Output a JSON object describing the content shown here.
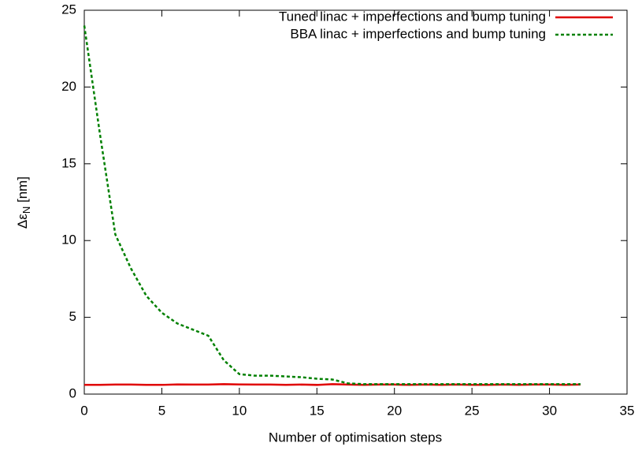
{
  "chart_data": {
    "type": "line",
    "x_label": "Number of optimisation steps",
    "y_label": [
      "Δε",
      "N",
      " [nm]"
    ],
    "x": [
      0,
      1,
      2,
      3,
      4,
      5,
      6,
      7,
      8,
      9,
      10,
      11,
      12,
      13,
      14,
      15,
      16,
      17,
      18,
      19,
      20,
      21,
      22,
      23,
      24,
      25,
      26,
      27,
      28,
      29,
      30,
      31,
      32
    ],
    "series": [
      {
        "name": "Tuned linac + imperfections and bump tuning",
        "color": "#e00000",
        "dash": false,
        "values": [
          0.6,
          0.6,
          0.62,
          0.62,
          0.6,
          0.6,
          0.63,
          0.62,
          0.62,
          0.65,
          0.63,
          0.62,
          0.62,
          0.6,
          0.62,
          0.6,
          0.65,
          0.62,
          0.6,
          0.62,
          0.62,
          0.6,
          0.62,
          0.6,
          0.62,
          0.6,
          0.6,
          0.62,
          0.6,
          0.62,
          0.62,
          0.6,
          0.62
        ]
      },
      {
        "name": "BBA linac + imperfections and bump tuning",
        "color": "#008000",
        "dash": true,
        "values": [
          24,
          17,
          10.4,
          8.2,
          6.4,
          5.3,
          4.6,
          4.2,
          3.8,
          2.2,
          1.3,
          1.2,
          1.2,
          1.15,
          1.1,
          1.0,
          0.95,
          0.7,
          0.65,
          0.65,
          0.65,
          0.65,
          0.65,
          0.65,
          0.65,
          0.65,
          0.65,
          0.65,
          0.65,
          0.65,
          0.65,
          0.65,
          0.65
        ]
      }
    ],
    "xlim": [
      0,
      35
    ],
    "xticks": [
      0,
      5,
      10,
      15,
      20,
      25,
      30,
      35
    ],
    "ylim": [
      0,
      25
    ],
    "yticks": [
      0,
      5,
      10,
      15,
      20,
      25
    ],
    "legend": "top-right"
  }
}
